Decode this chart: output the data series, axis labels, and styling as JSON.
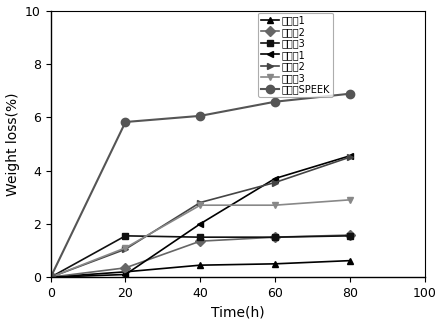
{
  "title": "",
  "xlabel": "Time(h)",
  "ylabel": "Weight loss(%)",
  "xlim": [
    0,
    100
  ],
  "ylim": [
    0,
    10
  ],
  "xticks": [
    0,
    20,
    40,
    60,
    80,
    100
  ],
  "yticks": [
    0,
    2,
    4,
    6,
    8,
    10
  ],
  "series": [
    {
      "label": "实施例1",
      "x": [
        0,
        20,
        40,
        60,
        80
      ],
      "y": [
        0,
        0.2,
        0.45,
        0.5,
        0.62
      ],
      "color": "#000000",
      "marker": "^",
      "markersize": 5,
      "linewidth": 1.2,
      "linestyle": "-"
    },
    {
      "label": "实施例2",
      "x": [
        0,
        20,
        40,
        60,
        80
      ],
      "y": [
        0,
        0.35,
        1.35,
        1.5,
        1.58
      ],
      "color": "#666666",
      "marker": "D",
      "markersize": 5,
      "linewidth": 1.2,
      "linestyle": "-"
    },
    {
      "label": "实施例3",
      "x": [
        0,
        20,
        40,
        60,
        80
      ],
      "y": [
        0,
        1.55,
        1.5,
        1.5,
        1.55
      ],
      "color": "#111111",
      "marker": "s",
      "markersize": 5,
      "linewidth": 1.2,
      "linestyle": "-"
    },
    {
      "label": "对比例1",
      "x": [
        0,
        20,
        40,
        60,
        80
      ],
      "y": [
        0,
        0.1,
        2.0,
        3.7,
        4.55
      ],
      "color": "#000000",
      "marker": "<",
      "markersize": 5,
      "linewidth": 1.2,
      "linestyle": "-"
    },
    {
      "label": "对比例2",
      "x": [
        0,
        20,
        40,
        60,
        80
      ],
      "y": [
        0,
        1.05,
        2.8,
        3.55,
        4.5
      ],
      "color": "#444444",
      "marker": ">",
      "markersize": 5,
      "linewidth": 1.2,
      "linestyle": "-"
    },
    {
      "label": "对比例3",
      "x": [
        0,
        20,
        40,
        60,
        80
      ],
      "y": [
        0,
        1.1,
        2.7,
        2.7,
        2.9
      ],
      "color": "#888888",
      "marker": "v",
      "markersize": 5,
      "linewidth": 1.2,
      "linestyle": "-"
    },
    {
      "label": "未掺杂SPEEK",
      "x": [
        0,
        20,
        40,
        60,
        80
      ],
      "y": [
        0,
        5.82,
        6.05,
        6.58,
        6.88
      ],
      "color": "#555555",
      "marker": "o",
      "markersize": 6,
      "linewidth": 1.5,
      "linestyle": "-"
    }
  ],
  "legend_fontsize": 7.0,
  "axis_fontsize": 10,
  "tick_fontsize": 9,
  "figsize": [
    4.42,
    3.25
  ],
  "dpi": 100
}
